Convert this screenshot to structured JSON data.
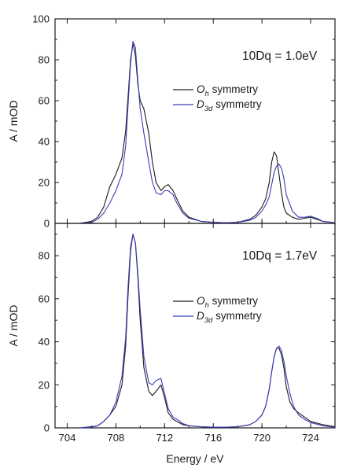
{
  "chart_data": [
    {
      "type": "line",
      "annotation": "10Dq = 1.0eV",
      "ylabel": "A / mOD",
      "ylim": [
        0,
        100
      ],
      "xlim": [
        703,
        726
      ],
      "y_ticks": [
        0,
        20,
        40,
        60,
        80,
        100
      ],
      "x_ticks": [
        704,
        708,
        712,
        716,
        720,
        724
      ],
      "x_tick_labels_shown": false,
      "legend_position": "center-right",
      "series": [
        {
          "name_main": "O",
          "name_sub": "h",
          "name_rest": " symmetry",
          "color": "#1a1a1a",
          "x": [
            705,
            706,
            706.5,
            707,
            707.5,
            708,
            708.5,
            708.8,
            709,
            709.2,
            709.4,
            709.6,
            709.8,
            710,
            710.3,
            710.7,
            711,
            711.3,
            711.7,
            712,
            712.3,
            712.7,
            713,
            713.5,
            714,
            715,
            716,
            717,
            718,
            719,
            719.5,
            720,
            720.3,
            720.6,
            720.8,
            721,
            721.2,
            721.4,
            721.6,
            721.8,
            722,
            722.5,
            723,
            723.5,
            724,
            724.5,
            725,
            726
          ],
          "y": [
            0,
            1,
            3,
            8,
            18,
            24,
            32,
            45,
            62,
            80,
            88,
            82,
            68,
            60,
            56,
            44,
            30,
            20,
            16,
            18,
            19,
            16,
            12,
            6,
            3,
            1,
            0.5,
            0.3,
            0.5,
            2,
            4,
            8,
            12,
            20,
            30,
            35,
            33,
            24,
            15,
            8,
            5,
            3,
            2,
            2.5,
            3,
            2,
            1,
            0.3
          ]
        },
        {
          "name_main": "D",
          "name_sub": "3d",
          "name_rest": " symmetry",
          "color": "#3b3bb8",
          "x": [
            705,
            706,
            706.5,
            707,
            707.5,
            708,
            708.5,
            708.8,
            709,
            709.2,
            709.4,
            709.6,
            709.8,
            710,
            710.3,
            710.7,
            711,
            711.3,
            711.7,
            712,
            712.3,
            712.7,
            713,
            713.5,
            714,
            715,
            716,
            717,
            718,
            719,
            719.5,
            720,
            720.3,
            720.6,
            720.8,
            721,
            721.2,
            721.4,
            721.6,
            721.8,
            722,
            722.5,
            723,
            723.5,
            724,
            724.5,
            725,
            726
          ],
          "y": [
            0,
            0.5,
            2,
            5,
            10,
            16,
            24,
            38,
            58,
            78,
            89,
            86,
            70,
            56,
            44,
            30,
            20,
            15,
            14,
            16,
            16,
            14,
            10,
            5,
            2.5,
            1,
            0.5,
            0.3,
            0.5,
            1.5,
            3,
            6,
            9,
            13,
            19,
            25,
            28,
            29,
            27,
            22,
            14,
            6,
            3,
            3,
            3.5,
            2.5,
            1,
            0.3
          ]
        }
      ]
    },
    {
      "type": "line",
      "annotation": "10Dq = 1.7eV",
      "xlabel": "Energy / eV",
      "ylabel": "A / mOD",
      "ylim": [
        0,
        95
      ],
      "xlim": [
        703,
        726
      ],
      "y_ticks": [
        0,
        20,
        40,
        60,
        80
      ],
      "x_ticks": [
        704,
        708,
        712,
        716,
        720,
        724
      ],
      "x_tick_labels_shown": true,
      "legend_position": "center-right",
      "series": [
        {
          "name_main": "O",
          "name_sub": "h",
          "name_rest": " symmetry",
          "color": "#1a1a1a",
          "x": [
            705,
            706,
            706.5,
            707,
            707.5,
            708,
            708.5,
            708.8,
            709,
            709.2,
            709.4,
            709.6,
            709.8,
            710,
            710.3,
            710.7,
            711,
            711.3,
            711.7,
            712,
            712.3,
            712.7,
            713,
            713.5,
            714,
            715,
            716,
            717,
            718,
            719,
            719.5,
            720,
            720.3,
            720.6,
            720.8,
            721,
            721.2,
            721.4,
            721.6,
            721.8,
            722,
            722.3,
            722.6,
            723,
            723.5,
            724,
            725,
            726
          ],
          "y": [
            0,
            0.5,
            1,
            3,
            6,
            10,
            20,
            38,
            62,
            82,
            90,
            86,
            70,
            50,
            28,
            17,
            15,
            17,
            20,
            14,
            7,
            4,
            3,
            1.5,
            1,
            0.5,
            0.3,
            0.3,
            0.5,
            1.5,
            3,
            6,
            10,
            18,
            26,
            33,
            37,
            37,
            34,
            28,
            19,
            12,
            9,
            7,
            5,
            3,
            1.5,
            0.5
          ]
        },
        {
          "name_main": "D",
          "name_sub": "3d",
          "name_rest": " symmetry",
          "color": "#3b3bb8",
          "x": [
            705,
            706,
            706.5,
            707,
            707.5,
            708,
            708.5,
            708.8,
            709,
            709.2,
            709.4,
            709.6,
            709.8,
            710,
            710.3,
            710.7,
            711,
            711.3,
            711.7,
            712,
            712.3,
            712.7,
            713,
            713.5,
            714,
            715,
            716,
            717,
            718,
            719,
            719.5,
            720,
            720.3,
            720.6,
            720.8,
            721,
            721.2,
            721.4,
            721.6,
            721.8,
            722,
            722.3,
            722.6,
            723,
            723.5,
            724,
            725,
            726
          ],
          "y": [
            0,
            0.3,
            1,
            3,
            6,
            12,
            24,
            42,
            66,
            84,
            90,
            86,
            72,
            55,
            33,
            21,
            20,
            22,
            23,
            16,
            9,
            5,
            4,
            2,
            1,
            0.5,
            0.3,
            0.3,
            0.5,
            1.5,
            3,
            6,
            10,
            18,
            26,
            33,
            37,
            38,
            36,
            31,
            24,
            16,
            10,
            6,
            4,
            2.5,
            1,
            0.3
          ]
        }
      ]
    }
  ]
}
